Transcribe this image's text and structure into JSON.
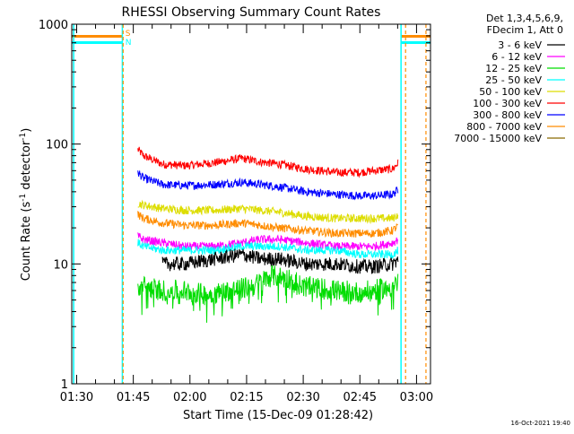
{
  "chart_data": {
    "type": "line",
    "title": "RHESSI Observing Summary Count Rates",
    "xlabel": "Start Time (15-Dec-09 01:28:42)",
    "ylabel_main": "Count Rate (s",
    "ylabel_sup1": "-1",
    "ylabel_mid": " detector",
    "ylabel_sup2": "-1",
    "ylabel_end": ")",
    "y_scale": "log",
    "ylim": [
      1,
      1000
    ],
    "xlim_minutes": [
      0,
      95
    ],
    "x_tick_labels": [
      "01:30",
      "01:45",
      "02:00",
      "02:15",
      "02:30",
      "02:45",
      "03:00"
    ],
    "y_tick_labels": [
      "1",
      "10",
      "100",
      "1000"
    ],
    "timestamp": "16-Oct-2021 19:40",
    "legend": {
      "header_1": "Det 1,3,4,5,6,9,",
      "header_2": "FDecim 1, Att 0",
      "placement": "outside-right",
      "entries": [
        {
          "label": "3 - 6 keV",
          "color": "#000000"
        },
        {
          "label": "6 - 12 keV",
          "color": "#ff00ff"
        },
        {
          "label": "12 - 25 keV",
          "color": "#00dd00"
        },
        {
          "label": "25 - 50 keV",
          "color": "#00ffff"
        },
        {
          "label": "50 - 100 keV",
          "color": "#dddd00"
        },
        {
          "label": "100 - 300 keV",
          "color": "#ff0000"
        },
        {
          "label": "300 - 800 keV",
          "color": "#0000ff"
        },
        {
          "label": "800 - 7000 keV",
          "color": "#ff8c00"
        },
        {
          "label": "7000 - 15000 keV",
          "color": "#8b6b00"
        }
      ]
    },
    "markers": {
      "saa_label": "S",
      "night_label": "N",
      "saa_color": "#ff8c00",
      "night_color": "#00ffff"
    },
    "series": [
      {
        "name": "100 - 300 keV",
        "color": "#ff0000",
        "x": [
          17.5,
          19,
          24,
          30,
          38,
          45,
          50,
          55,
          62,
          70,
          76,
          80,
          85,
          86.5
        ],
        "values": [
          90,
          80,
          68,
          66,
          70,
          76,
          71,
          68,
          62,
          58,
          58,
          60,
          62,
          70
        ]
      },
      {
        "name": "300 - 800 keV",
        "color": "#0000ff",
        "x": [
          17.5,
          19,
          24,
          30,
          38,
          45,
          50,
          55,
          62,
          70,
          76,
          80,
          85,
          86.5
        ],
        "values": [
          58,
          52,
          46,
          45,
          46,
          48,
          46,
          44,
          40,
          38,
          37,
          37,
          38,
          42
        ]
      },
      {
        "name": "50 - 100 keV",
        "color": "#dddd00",
        "x": [
          17.5,
          19,
          24,
          30,
          38,
          45,
          50,
          55,
          62,
          70,
          76,
          80,
          85,
          86.5
        ],
        "values": [
          32,
          31,
          29,
          28,
          28,
          29,
          28,
          27,
          25,
          24,
          24,
          24,
          24,
          26
        ]
      },
      {
        "name": "800 - 7000 keV",
        "color": "#ff8c00",
        "x": [
          17.5,
          19,
          24,
          30,
          38,
          45,
          50,
          55,
          62,
          70,
          76,
          80,
          85,
          86.5
        ],
        "values": [
          26,
          24,
          22,
          21,
          21,
          22,
          21,
          20,
          19,
          18,
          18,
          18,
          19,
          21
        ]
      },
      {
        "name": "6 - 12 keV",
        "color": "#ff00ff",
        "x": [
          17.5,
          19,
          24,
          30,
          38,
          45,
          50,
          55,
          62,
          70,
          76,
          80,
          85,
          86.5
        ],
        "values": [
          17,
          16,
          15,
          14,
          14,
          15,
          16,
          16,
          15,
          14,
          14,
          14,
          15,
          16
        ]
      },
      {
        "name": "25 - 50 keV",
        "color": "#00ffff",
        "x": [
          17.5,
          19,
          24,
          30,
          38,
          45,
          50,
          55,
          62,
          70,
          76,
          80,
          85,
          86.5
        ],
        "values": [
          15,
          14,
          13,
          13,
          13,
          14,
          14,
          14,
          13,
          13,
          12,
          12,
          12,
          13
        ]
      },
      {
        "name": "3 - 6 keV",
        "color": "#000000",
        "x": [
          24,
          30,
          38,
          45,
          50,
          55,
          62,
          70,
          76,
          80,
          85,
          86.5
        ],
        "values": [
          10,
          10,
          11,
          12,
          11,
          11,
          10,
          10,
          9.5,
          9.5,
          10,
          11
        ]
      },
      {
        "name": "12 - 25 keV",
        "color": "#00dd00",
        "x": [
          17.5,
          19,
          24,
          30,
          36,
          42,
          48,
          53,
          58,
          62,
          70,
          76,
          80,
          85,
          86.5
        ],
        "values": [
          6,
          6.5,
          6,
          6,
          5.5,
          6,
          6.5,
          8,
          7.5,
          6.5,
          6,
          5.8,
          6,
          6.5,
          7
        ]
      }
    ]
  }
}
